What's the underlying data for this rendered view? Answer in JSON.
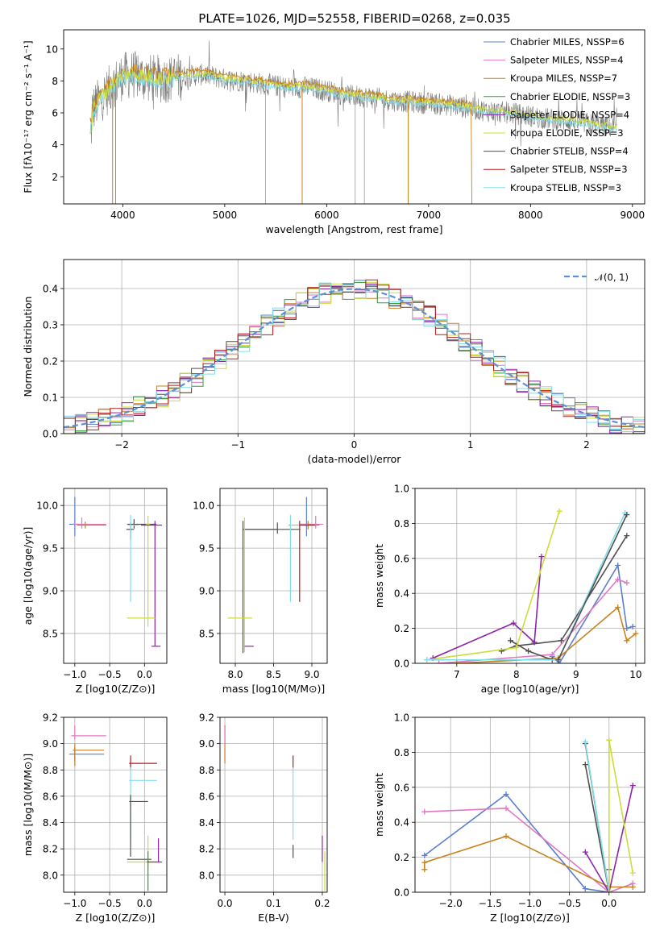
{
  "figure_title": "PLATE=1026, MJD=52558, FIBERID=0268, z=0.035",
  "model_colors": [
    "#5b7fcf",
    "#e377c2",
    "#c7821d",
    "#2ca02c",
    "#8e24aa",
    "#cddc39",
    "#505050",
    "#b71c1c",
    "#80deea"
  ],
  "chart_data": [
    {
      "id": "spectrum",
      "type": "line",
      "xlabel": "wavelength [Angstrom, rest frame]",
      "ylabel": "Flux [fλ10⁻¹⁷ erg cm⁻² s⁻¹ A⁻¹]",
      "xlim": [
        3420,
        9120
      ],
      "ylim": [
        0.3,
        11.2
      ],
      "xticks": [
        4000,
        5000,
        6000,
        7000,
        8000,
        9000
      ],
      "yticks": [
        2,
        4,
        6,
        8,
        10
      ],
      "grid": false,
      "legend_position": "top-right",
      "legend": [
        "Chabrier MILES, NSSP=6",
        "Salpeter MILES, NSSP=4",
        "Kroupa MILES, NSSP=7",
        "Chabrier ELODIE, NSSP=3",
        "Salpeter ELODIE, NSSP=4",
        "Kroupa ELODIE, NSSP=3",
        "Chabrier STELIB, NSSP=4",
        "Salpeter STELIB, NSSP=3",
        "Kroupa STELIB, NSSP=3"
      ],
      "continuum": {
        "x": [
          3700,
          3800,
          3900,
          4000,
          4100,
          4200,
          4400,
          4600,
          4800,
          5000,
          5200,
          5400,
          5600,
          5800,
          6000,
          6200,
          6400,
          6600,
          6800,
          7000,
          7200,
          7400,
          7600,
          7800,
          8000,
          8200,
          8400,
          8600,
          8800
        ],
        "y": [
          6.2,
          7.0,
          7.7,
          8.3,
          8.4,
          8.2,
          8.1,
          8.3,
          8.4,
          8.1,
          8.0,
          7.8,
          7.6,
          7.6,
          7.4,
          7.1,
          7.0,
          6.8,
          6.7,
          6.6,
          6.5,
          6.3,
          6.1,
          6.0,
          5.8,
          5.6,
          5.5,
          5.3,
          5.1
        ]
      }
    },
    {
      "id": "residual-histogram",
      "type": "line",
      "xlabel": "(data-model)/error",
      "ylabel": "Normed distribution",
      "xlim": [
        -2.5,
        2.5
      ],
      "ylim": [
        0,
        0.48
      ],
      "xticks": [
        -2,
        -1,
        0,
        1,
        2
      ],
      "yticks": [
        0.0,
        0.1,
        0.2,
        0.3,
        0.4
      ],
      "grid": true,
      "legend_position": "top-right",
      "legend": [
        "𝒩(0, 1)"
      ],
      "bin_width": 0.1
    },
    {
      "id": "age-vs-z",
      "type": "scatter",
      "xlabel": "Z [log10(Z/Z⊙)]",
      "ylabel": "age  [log10(age/yr)]",
      "xlim": [
        -1.16,
        0.32
      ],
      "ylim": [
        8.15,
        10.2
      ],
      "xticks": [
        -1.0,
        -0.5,
        0.0
      ],
      "yticks": [
        8.5,
        9.0,
        9.5,
        10.0
      ],
      "grid": true,
      "points": [
        {
          "x": -1.0,
          "y": 9.78,
          "xerr": [
            0.08,
            0.06
          ],
          "yerr": [
            0.14,
            0.32
          ],
          "color": 0
        },
        {
          "x": -0.9,
          "y": 9.78,
          "xerr": [
            0.12,
            0.35
          ],
          "yerr": [
            0.05,
            0.08
          ],
          "color": 1
        },
        {
          "x": -0.85,
          "y": 9.77,
          "xerr": [
            0.12,
            0.3
          ],
          "yerr": [
            0.04,
            0.04
          ],
          "color": 2
        },
        {
          "x": -0.2,
          "y": 9.72,
          "xerr": [
            0.06,
            0.05
          ],
          "yerr": [
            0.12,
            0.08
          ],
          "color": 6
        },
        {
          "x": -0.15,
          "y": 9.78,
          "xerr": [
            0.1,
            0.32
          ],
          "yerr": [
            0.05,
            0.06
          ],
          "color": 6
        },
        {
          "x": -0.2,
          "y": 9.77,
          "xerr": [
            0.04,
            0.12
          ],
          "yerr": [
            0.9,
            0.12
          ],
          "color": 8
        },
        {
          "x": 0.05,
          "y": 9.78,
          "xerr": [
            0.03,
            0.03
          ],
          "yerr": [
            1.2,
            0.1
          ],
          "color": 5
        },
        {
          "x": 0.15,
          "y": 9.77,
          "xerr": [
            0.2,
            0.1
          ],
          "yerr": [
            1.42,
            0.05
          ],
          "color": 4
        },
        {
          "x": 0.15,
          "y": 8.35,
          "xerr": [
            0.05,
            0.08
          ],
          "yerr": [
            0.0,
            0.0
          ],
          "color": 4
        },
        {
          "x": 0.0,
          "y": 8.68,
          "xerr": [
            0.25,
            0.15
          ],
          "yerr": [
            0.0,
            0.0
          ],
          "color": 5
        }
      ]
    },
    {
      "id": "age-vs-mass",
      "type": "scatter",
      "xlabel": "mass [log10(M/M⊙)]",
      "ylabel": "",
      "xlim": [
        7.8,
        9.2
      ],
      "ylim": [
        8.15,
        10.2
      ],
      "xticks": [
        8.0,
        8.5,
        9.0
      ],
      "yticks": [
        8.5,
        9.0,
        9.5,
        10.0
      ],
      "grid": true,
      "points": [
        {
          "x": 8.93,
          "y": 9.78,
          "xerr": [
            0.08,
            0.06
          ],
          "yerr": [
            0.14,
            0.32
          ],
          "color": 0
        },
        {
          "x": 9.05,
          "y": 9.78,
          "xerr": [
            0.2,
            0.1
          ],
          "yerr": [
            0.05,
            0.1
          ],
          "color": 1
        },
        {
          "x": 8.95,
          "y": 9.77,
          "xerr": [
            0.25,
            0.15
          ],
          "yerr": [
            0.05,
            0.05
          ],
          "color": 2
        },
        {
          "x": 8.55,
          "y": 9.72,
          "xerr": [
            0.45,
            0.3
          ],
          "yerr": [
            0.05,
            0.08
          ],
          "color": 6
        },
        {
          "x": 8.1,
          "y": 9.72,
          "xerr": [
            0.0,
            0.45
          ],
          "yerr": [
            1.45,
            0.1
          ],
          "color": 6
        },
        {
          "x": 8.72,
          "y": 9.77,
          "xerr": [
            0.0,
            0.2
          ],
          "yerr": [
            0.9,
            0.12
          ],
          "color": 8
        },
        {
          "x": 8.12,
          "y": 9.78,
          "xerr": [
            0.0,
            0.0
          ],
          "yerr": [
            1.5,
            0.08
          ],
          "color": 5
        },
        {
          "x": 8.84,
          "y": 9.77,
          "xerr": [
            0.0,
            0.2
          ],
          "yerr": [
            0.9,
            0.05
          ],
          "color": 7
        },
        {
          "x": 8.12,
          "y": 8.35,
          "xerr": [
            0.0,
            0.12
          ],
          "yerr": [
            0.0,
            0.0
          ],
          "color": 4
        },
        {
          "x": 8.1,
          "y": 8.68,
          "xerr": [
            0.2,
            0.12
          ],
          "yerr": [
            0.0,
            0.0
          ],
          "color": 5
        }
      ]
    },
    {
      "id": "weight-vs-age",
      "type": "line",
      "xlabel": "age  [log10(age/yr)]",
      "ylabel": "mass weight",
      "xlim": [
        6.3,
        10.15
      ],
      "ylim": [
        0,
        1.0
      ],
      "xticks": [
        7,
        8,
        9,
        10
      ],
      "yticks": [
        0.0,
        0.2,
        0.4,
        0.6,
        0.8,
        1.0
      ],
      "grid": true,
      "series": [
        {
          "color": 0,
          "x": [
            8.6,
            8.72,
            9.7,
            9.85,
            9.95
          ],
          "y": [
            0.04,
            0.0,
            0.56,
            0.2,
            0.21
          ]
        },
        {
          "color": 1,
          "x": [
            6.7,
            8.6,
            9.7,
            9.85
          ],
          "y": [
            0.0,
            0.05,
            0.48,
            0.46
          ]
        },
        {
          "color": 2,
          "x": [
            7.0,
            8.7,
            9.7,
            9.85,
            10.0
          ],
          "y": [
            0.0,
            0.03,
            0.32,
            0.13,
            0.17
          ]
        },
        {
          "color": 4,
          "x": [
            6.6,
            7.95,
            8.3,
            8.42
          ],
          "y": [
            0.03,
            0.23,
            0.12,
            0.61
          ]
        },
        {
          "color": 6,
          "x": [
            7.75,
            8.0,
            8.75,
            9.85
          ],
          "y": [
            0.07,
            0.1,
            0.13,
            0.73
          ]
        },
        {
          "color": 6,
          "x": [
            7.9,
            8.2,
            8.6
          ],
          "y": [
            0.13,
            0.07,
            0.02
          ]
        },
        {
          "color": 5,
          "x": [
            6.5,
            8.0,
            8.72
          ],
          "y": [
            0.02,
            0.09,
            0.87
          ]
        },
        {
          "color": 8,
          "x": [
            6.5,
            8.7,
            9.82
          ],
          "y": [
            0.02,
            0.02,
            0.86
          ]
        },
        {
          "color": 6,
          "x": [
            8.7,
            9.85
          ],
          "y": [
            0.02,
            0.85
          ]
        }
      ]
    },
    {
      "id": "mass-vs-z",
      "type": "scatter",
      "xlabel": "Z [log10(Z/Z⊙)]",
      "ylabel": "mass [log10(M/M⊙)]",
      "xlim": [
        -1.16,
        0.32
      ],
      "ylim": [
        7.87,
        9.2
      ],
      "xticks": [
        -1.0,
        -0.5,
        0.0
      ],
      "yticks": [
        8.0,
        8.2,
        8.4,
        8.6,
        8.8,
        9.0,
        9.2
      ],
      "grid": true,
      "points": [
        {
          "x": -1.0,
          "y": 8.92,
          "xerr": [
            0.08,
            0.42
          ],
          "yerr": [
            0.05,
            0.05
          ],
          "color": 0
        },
        {
          "x": -1.0,
          "y": 9.06,
          "xerr": [
            0.05,
            0.45
          ],
          "yerr": [
            0.03,
            0.08
          ],
          "color": 1
        },
        {
          "x": -1.0,
          "y": 8.95,
          "xerr": [
            0.03,
            0.42
          ],
          "yerr": [
            0.12,
            0.05
          ],
          "color": 2
        },
        {
          "x": -0.2,
          "y": 8.85,
          "xerr": [
            0.02,
            0.38
          ],
          "yerr": [
            0.05,
            0.06
          ],
          "color": 7
        },
        {
          "x": -0.2,
          "y": 8.72,
          "xerr": [
            0.02,
            0.38
          ],
          "yerr": [
            0.48,
            0.1
          ],
          "color": 8
        },
        {
          "x": -0.2,
          "y": 8.56,
          "xerr": [
            0.02,
            0.25
          ],
          "yerr": [
            0.42,
            0.05
          ],
          "color": 6
        },
        {
          "x": -0.15,
          "y": 8.12,
          "xerr": [
            0.1,
            0.25
          ],
          "yerr": [
            0.0,
            0.0
          ],
          "color": 6
        },
        {
          "x": 0.05,
          "y": 8.1,
          "xerr": [
            0.3,
            0.15
          ],
          "yerr": [
            0.05,
            0.2
          ],
          "color": 5
        },
        {
          "x": 0.05,
          "y": 8.1,
          "xerr": [
            0.02,
            0.02
          ],
          "yerr": [
            0.22,
            0.08
          ],
          "color": 3
        },
        {
          "x": 0.2,
          "y": 8.1,
          "xerr": [
            0.15,
            0.05
          ],
          "yerr": [
            0.0,
            0.18
          ],
          "color": 4
        }
      ]
    },
    {
      "id": "mass-vs-ebv",
      "type": "scatter",
      "xlabel": "E(B-V)",
      "ylabel": "",
      "xlim": [
        -0.01,
        0.21
      ],
      "ylim": [
        7.87,
        9.2
      ],
      "xticks": [
        0.0,
        0.1,
        0.2
      ],
      "yticks": [
        8.0,
        8.2,
        8.4,
        8.6,
        8.8,
        9.0,
        9.2
      ],
      "grid": true,
      "points": [
        {
          "x": 0.0,
          "y": 9.0,
          "xerr": [
            0.0,
            0.0
          ],
          "yerr": [
            0.15,
            0.14
          ],
          "color": 2
        },
        {
          "x": 0.0,
          "y": 9.05,
          "xerr": [
            0.0,
            0.0
          ],
          "yerr": [
            0.05,
            0.08
          ],
          "color": 1
        },
        {
          "x": 0.14,
          "y": 8.86,
          "xerr": [
            0.0,
            0.0
          ],
          "yerr": [
            0.05,
            0.05
          ],
          "color": 7
        },
        {
          "x": 0.14,
          "y": 8.72,
          "xerr": [
            0.0,
            0.0
          ],
          "yerr": [
            0.45,
            0.1
          ],
          "color": 8
        },
        {
          "x": 0.14,
          "y": 8.2,
          "xerr": [
            0.0,
            0.0
          ],
          "yerr": [
            0.07,
            0.03
          ],
          "color": 6
        },
        {
          "x": 0.2,
          "y": 8.2,
          "xerr": [
            0.0,
            0.0
          ],
          "yerr": [
            0.1,
            0.1
          ],
          "color": 4
        },
        {
          "x": 0.205,
          "y": 8.1,
          "xerr": [
            0.0,
            0.0
          ],
          "yerr": [
            0.22,
            0.08
          ],
          "color": 5
        }
      ]
    },
    {
      "id": "weight-vs-z",
      "type": "line",
      "xlabel": "Z [log10(Z/Z⊙)]",
      "ylabel": "mass weight",
      "xlim": [
        -2.45,
        0.45
      ],
      "ylim": [
        0,
        1.0
      ],
      "xticks": [
        -2.0,
        -1.5,
        -1.0,
        -0.5,
        0.0
      ],
      "yticks": [
        0.0,
        0.2,
        0.4,
        0.6,
        0.8,
        1.0
      ],
      "grid": true,
      "series": [
        {
          "color": 0,
          "x": [
            -2.33,
            -1.3,
            -0.3,
            0.0
          ],
          "y": [
            0.21,
            0.56,
            0.02,
            0.0
          ]
        },
        {
          "color": 1,
          "x": [
            -2.33,
            -1.3,
            0.0,
            0.3
          ],
          "y": [
            0.46,
            0.48,
            0.0,
            0.05
          ]
        },
        {
          "color": 2,
          "x": [
            -2.33,
            -2.33,
            -1.3,
            0.0,
            0.3
          ],
          "y": [
            0.13,
            0.17,
            0.32,
            0.03,
            0.03
          ]
        },
        {
          "color": 4,
          "x": [
            -0.3,
            0.0,
            0.3
          ],
          "y": [
            0.23,
            0.0,
            0.61
          ]
        },
        {
          "color": 6,
          "x": [
            -0.3,
            0.0,
            0.0
          ],
          "y": [
            0.73,
            0.0,
            0.13
          ]
        },
        {
          "color": 6,
          "x": [
            -0.3,
            0.0
          ],
          "y": [
            0.85,
            0.0
          ]
        },
        {
          "color": 8,
          "x": [
            -0.3,
            0.0
          ],
          "y": [
            0.86,
            0.0
          ]
        },
        {
          "color": 5,
          "x": [
            0.0,
            0.0,
            0.3
          ],
          "y": [
            0.0,
            0.87,
            0.11
          ]
        }
      ]
    }
  ]
}
